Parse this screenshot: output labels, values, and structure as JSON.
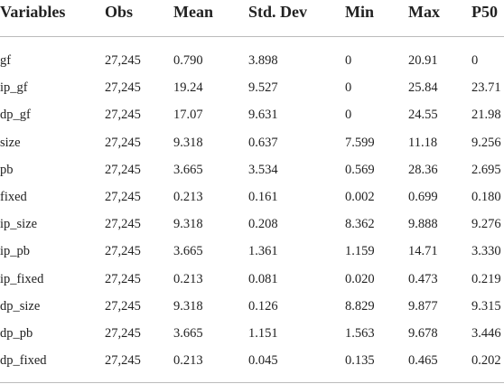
{
  "table": {
    "header": [
      "Variables",
      "Obs",
      "Mean",
      "Std. Dev",
      "Min",
      "Max",
      "P50"
    ],
    "rows": [
      [
        "gf",
        "27,245",
        "0.790",
        "3.898",
        "0",
        "20.91",
        "0"
      ],
      [
        "ip_gf",
        "27,245",
        "19.24",
        "9.527",
        "0",
        "25.84",
        "23.71"
      ],
      [
        "dp_gf",
        "27,245",
        "17.07",
        "9.631",
        "0",
        "24.55",
        "21.98"
      ],
      [
        "size",
        "27,245",
        "9.318",
        "0.637",
        "7.599",
        "11.18",
        "9.256"
      ],
      [
        "pb",
        "27,245",
        "3.665",
        "3.534",
        "0.569",
        "28.36",
        "2.695"
      ],
      [
        "fixed",
        "27,245",
        "0.213",
        "0.161",
        "0.002",
        "0.699",
        "0.180"
      ],
      [
        "ip_size",
        "27,245",
        "9.318",
        "0.208",
        "8.362",
        "9.888",
        "9.276"
      ],
      [
        "ip_pb",
        "27,245",
        "3.665",
        "1.361",
        "1.159",
        "14.71",
        "3.330"
      ],
      [
        "ip_fixed",
        "27,245",
        "0.213",
        "0.081",
        "0.020",
        "0.473",
        "0.219"
      ],
      [
        "dp_size",
        "27,245",
        "9.318",
        "0.126",
        "8.829",
        "9.877",
        "9.315"
      ],
      [
        "dp_pb",
        "27,245",
        "3.665",
        "1.151",
        "1.563",
        "9.678",
        "3.446"
      ],
      [
        "dp_fixed",
        "27,245",
        "0.213",
        "0.045",
        "0.135",
        "0.465",
        "0.202"
      ]
    ]
  }
}
